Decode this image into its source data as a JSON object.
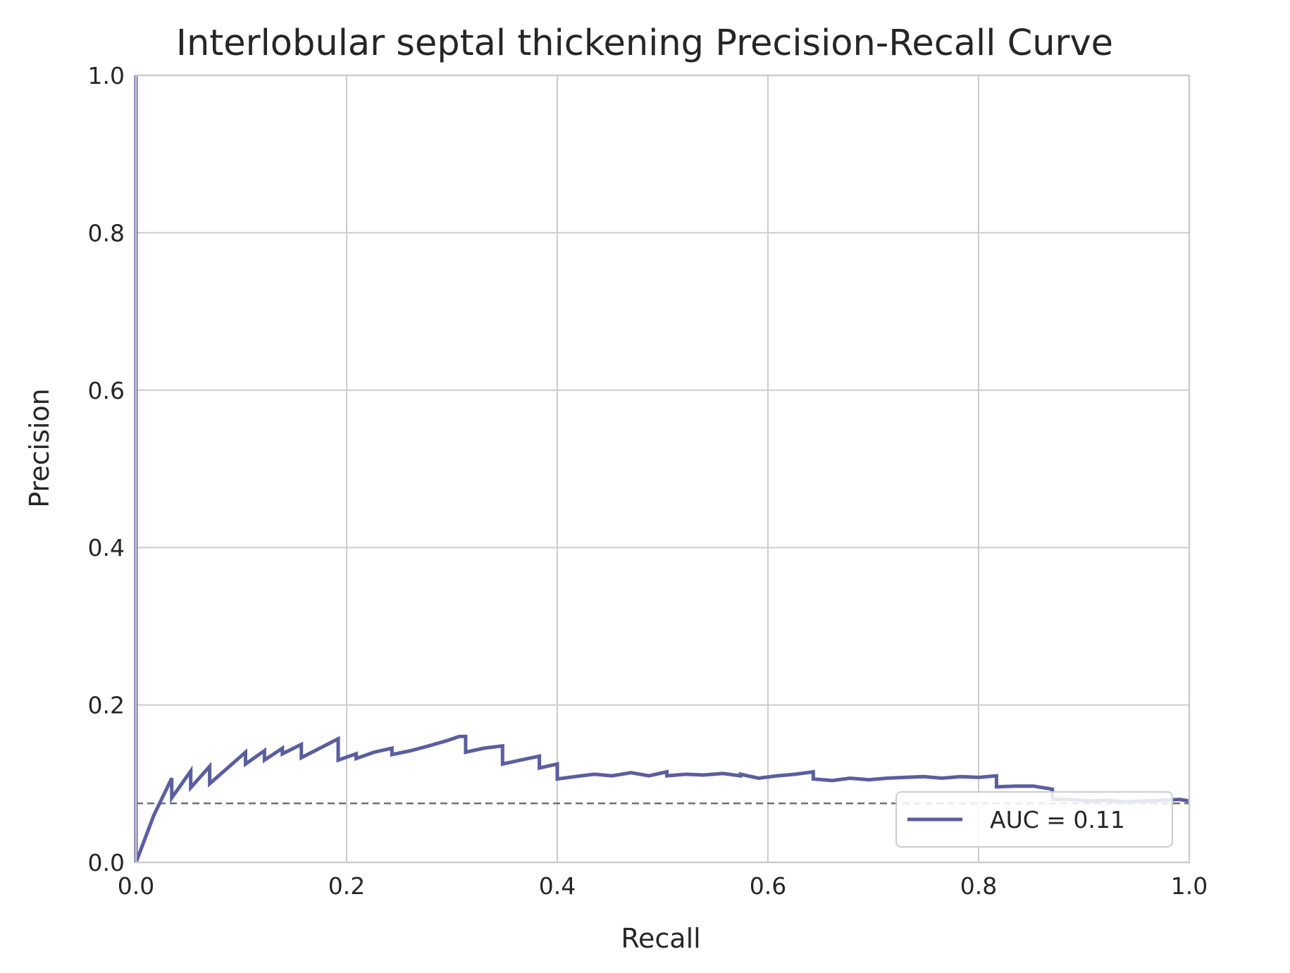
{
  "chart_data": {
    "type": "line",
    "title": "Interlobular septal thickening Precision-Recall Curve",
    "xlabel": "Recall",
    "ylabel": "Precision",
    "xlim": [
      0.0,
      1.0
    ],
    "ylim": [
      0.0,
      1.0
    ],
    "xticks": [
      "0.0",
      "0.2",
      "0.4",
      "0.6",
      "0.8",
      "1.0"
    ],
    "yticks": [
      "0.0",
      "0.2",
      "0.4",
      "0.6",
      "0.8",
      "1.0"
    ],
    "grid": true,
    "legend_position": "lower right",
    "colors": {
      "curve": "#5a5e9f",
      "baseline": "#707070",
      "grid": "#cccccc",
      "text": "#262626"
    },
    "legend": {
      "label": "AUC = 0.11"
    },
    "baseline": {
      "y": 0.075,
      "style": "dashed"
    },
    "series": [
      {
        "name": "AUC = 0.11",
        "x": [
          0.0,
          0.0,
          0.0,
          0.017,
          0.017,
          0.034,
          0.034,
          0.052,
          0.052,
          0.07,
          0.07,
          0.104,
          0.104,
          0.122,
          0.122,
          0.139,
          0.139,
          0.157,
          0.157,
          0.192,
          0.192,
          0.209,
          0.209,
          0.226,
          0.243,
          0.243,
          0.261,
          0.278,
          0.296,
          0.307,
          0.313,
          0.313,
          0.33,
          0.348,
          0.348,
          0.365,
          0.383,
          0.383,
          0.4,
          0.4,
          0.417,
          0.435,
          0.452,
          0.47,
          0.487,
          0.504,
          0.504,
          0.522,
          0.539,
          0.557,
          0.574,
          0.574,
          0.591,
          0.609,
          0.626,
          0.643,
          0.643,
          0.661,
          0.678,
          0.696,
          0.713,
          0.73,
          0.748,
          0.765,
          0.783,
          0.8,
          0.817,
          0.817,
          0.835,
          0.852,
          0.87,
          0.87,
          0.887,
          0.904,
          0.922,
          0.939,
          0.957,
          0.974,
          0.991,
          1.0
        ],
        "y": [
          1.0,
          0.0,
          0.0,
          0.06,
          0.06,
          0.107,
          0.082,
          0.116,
          0.095,
          0.122,
          0.1,
          0.14,
          0.125,
          0.142,
          0.13,
          0.145,
          0.138,
          0.15,
          0.133,
          0.157,
          0.13,
          0.138,
          0.132,
          0.14,
          0.145,
          0.137,
          0.142,
          0.148,
          0.155,
          0.16,
          0.16,
          0.14,
          0.145,
          0.148,
          0.125,
          0.13,
          0.135,
          0.12,
          0.125,
          0.106,
          0.109,
          0.112,
          0.11,
          0.114,
          0.11,
          0.115,
          0.11,
          0.112,
          0.111,
          0.113,
          0.11,
          0.112,
          0.107,
          0.11,
          0.112,
          0.115,
          0.106,
          0.104,
          0.107,
          0.105,
          0.107,
          0.108,
          0.109,
          0.107,
          0.109,
          0.108,
          0.11,
          0.096,
          0.097,
          0.097,
          0.093,
          0.08,
          0.08,
          0.078,
          0.079,
          0.077,
          0.078,
          0.079,
          0.08,
          0.078
        ]
      }
    ]
  }
}
